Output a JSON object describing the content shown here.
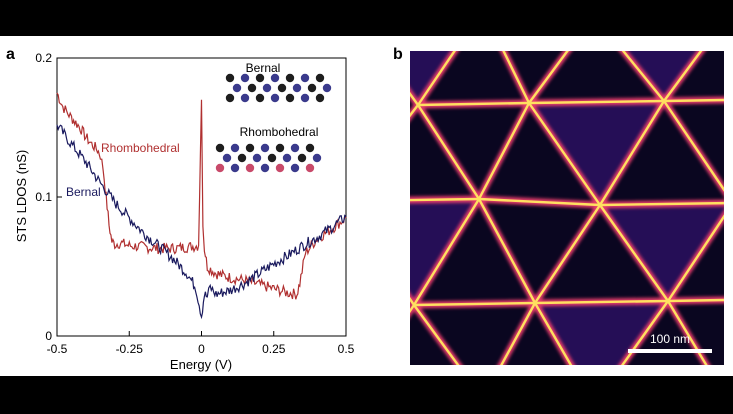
{
  "panel_a": {
    "label": "a"
  },
  "panel_b": {
    "label": "b",
    "scalebar_label": "100 nm"
  },
  "chart_data": {
    "type": "line",
    "xlabel": "Energy (V)",
    "ylabel": "STS LDOS (nS)",
    "xlim": [
      -0.5,
      0.5
    ],
    "ylim": [
      0,
      0.2
    ],
    "xticks": [
      -0.5,
      -0.25,
      0,
      0.25,
      0.5
    ],
    "xtick_labels": [
      "-0.5",
      "-0.25",
      "0",
      "0.25",
      "0.5"
    ],
    "yticks": [
      0,
      0.1,
      0.2
    ],
    "ytick_labels": [
      "0",
      "0.1",
      "0.2"
    ],
    "grid": false,
    "series": [
      {
        "name": "Rhombohedral",
        "color": "#b03030",
        "x": [
          -0.5,
          -0.48,
          -0.45,
          -0.42,
          -0.4,
          -0.38,
          -0.36,
          -0.35,
          -0.34,
          -0.33,
          -0.32,
          -0.31,
          -0.3,
          -0.28,
          -0.25,
          -0.2,
          -0.15,
          -0.1,
          -0.05,
          -0.01,
          0.0,
          0.005,
          0.01,
          0.02,
          0.05,
          0.1,
          0.15,
          0.2,
          0.25,
          0.3,
          0.33,
          0.34,
          0.36,
          0.4,
          0.45,
          0.5
        ],
        "y": [
          0.175,
          0.165,
          0.157,
          0.15,
          0.143,
          0.138,
          0.134,
          0.13,
          0.12,
          0.1,
          0.08,
          0.068,
          0.066,
          0.067,
          0.065,
          0.064,
          0.063,
          0.063,
          0.064,
          0.065,
          0.17,
          0.08,
          0.063,
          0.05,
          0.045,
          0.042,
          0.04,
          0.037,
          0.034,
          0.031,
          0.03,
          0.038,
          0.06,
          0.07,
          0.077,
          0.085
        ]
      },
      {
        "name": "Bernal",
        "color": "#1a1a5e",
        "x": [
          -0.5,
          -0.45,
          -0.4,
          -0.35,
          -0.3,
          -0.25,
          -0.2,
          -0.15,
          -0.1,
          -0.05,
          -0.02,
          0.0,
          0.01,
          0.02,
          0.03,
          0.05,
          0.1,
          0.15,
          0.2,
          0.25,
          0.3,
          0.35,
          0.4,
          0.45,
          0.5
        ],
        "y": [
          0.152,
          0.138,
          0.125,
          0.11,
          0.096,
          0.085,
          0.074,
          0.065,
          0.056,
          0.045,
          0.035,
          0.015,
          0.03,
          0.028,
          0.035,
          0.03,
          0.033,
          0.038,
          0.045,
          0.052,
          0.058,
          0.065,
          0.071,
          0.078,
          0.086
        ]
      }
    ],
    "annotations": [
      "Rhombohedral",
      "Bernal"
    ]
  },
  "inset": {
    "bernal_label": "Bernal",
    "rhombohedral_label": "Rhombohedral",
    "bernal_rows": [
      [
        "black",
        "blue",
        "black",
        "blue",
        "black",
        "blue",
        "black"
      ],
      [
        "blue",
        "black",
        "blue",
        "black",
        "blue",
        "black",
        "blue"
      ],
      [
        "black",
        "blue",
        "black",
        "blue",
        "black",
        "blue",
        "black"
      ]
    ],
    "rhombohedral_rows": [
      [
        "black",
        "blue",
        "black",
        "blue",
        "black",
        "blue",
        "black"
      ],
      [
        "blue",
        "black",
        "blue",
        "black",
        "blue",
        "black",
        "blue"
      ],
      [
        "pink",
        "blue",
        "pink",
        "blue",
        "pink",
        "blue",
        "pink"
      ]
    ],
    "colors": {
      "black": "#1e1e1e",
      "blue": "#3a3a8c",
      "pink": "#c84a6a"
    }
  },
  "image_colors": {
    "background": "#0a0620",
    "domain_fill": "#2a1060",
    "wall": "#ffe060",
    "wall_glow": "#e23a6a"
  }
}
